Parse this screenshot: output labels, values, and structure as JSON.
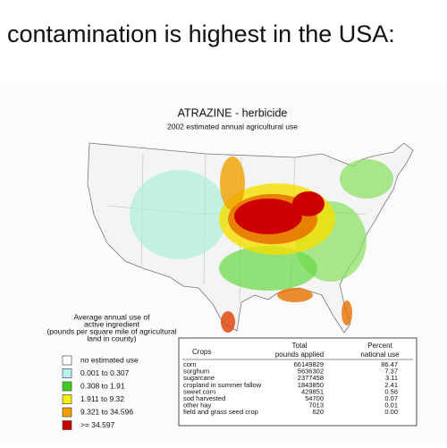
{
  "header": "contamination is highest in the USA:",
  "map": {
    "title": "ATRAZINE - herbicide",
    "subtitle": "2002 estimated annual agricultural use",
    "legend": {
      "title": [
        "Average annual use of",
        "active ingredient",
        "(pounds per square mile of agricultural",
        "land in county)"
      ],
      "items": [
        {
          "label": "no estimated use",
          "color": "#ffffff"
        },
        {
          "label": "0.001  to  0.307",
          "color": "#b8f0f0"
        },
        {
          "label": "0.308  to  1.91",
          "color": "#44cc22"
        },
        {
          "label": "1.911  to  9.32",
          "color": "#f4f000"
        },
        {
          "label": "9.321  to  34.596",
          "color": "#f0a000"
        },
        {
          "label": ">= 34.597",
          "color": "#cc0000"
        }
      ]
    },
    "table": {
      "headers": [
        [
          "Crops"
        ],
        [
          "Total",
          "pounds applied"
        ],
        [
          "Percent",
          "national use"
        ]
      ],
      "rows": [
        [
          "corn",
          "66149829",
          "86.47"
        ],
        [
          "sorghum",
          "5636302",
          "7.37"
        ],
        [
          "sugarcane",
          "2377458",
          "3.11"
        ],
        [
          "cropland in summer fallow",
          "1843850",
          "2.41"
        ],
        [
          "sweet corn",
          "429851",
          "0.56"
        ],
        [
          "sod harvested",
          "54700",
          "0.07"
        ],
        [
          "other hay",
          "7013",
          "0.01"
        ],
        [
          "field and grass seed crop",
          "620",
          "0.00"
        ]
      ]
    }
  }
}
